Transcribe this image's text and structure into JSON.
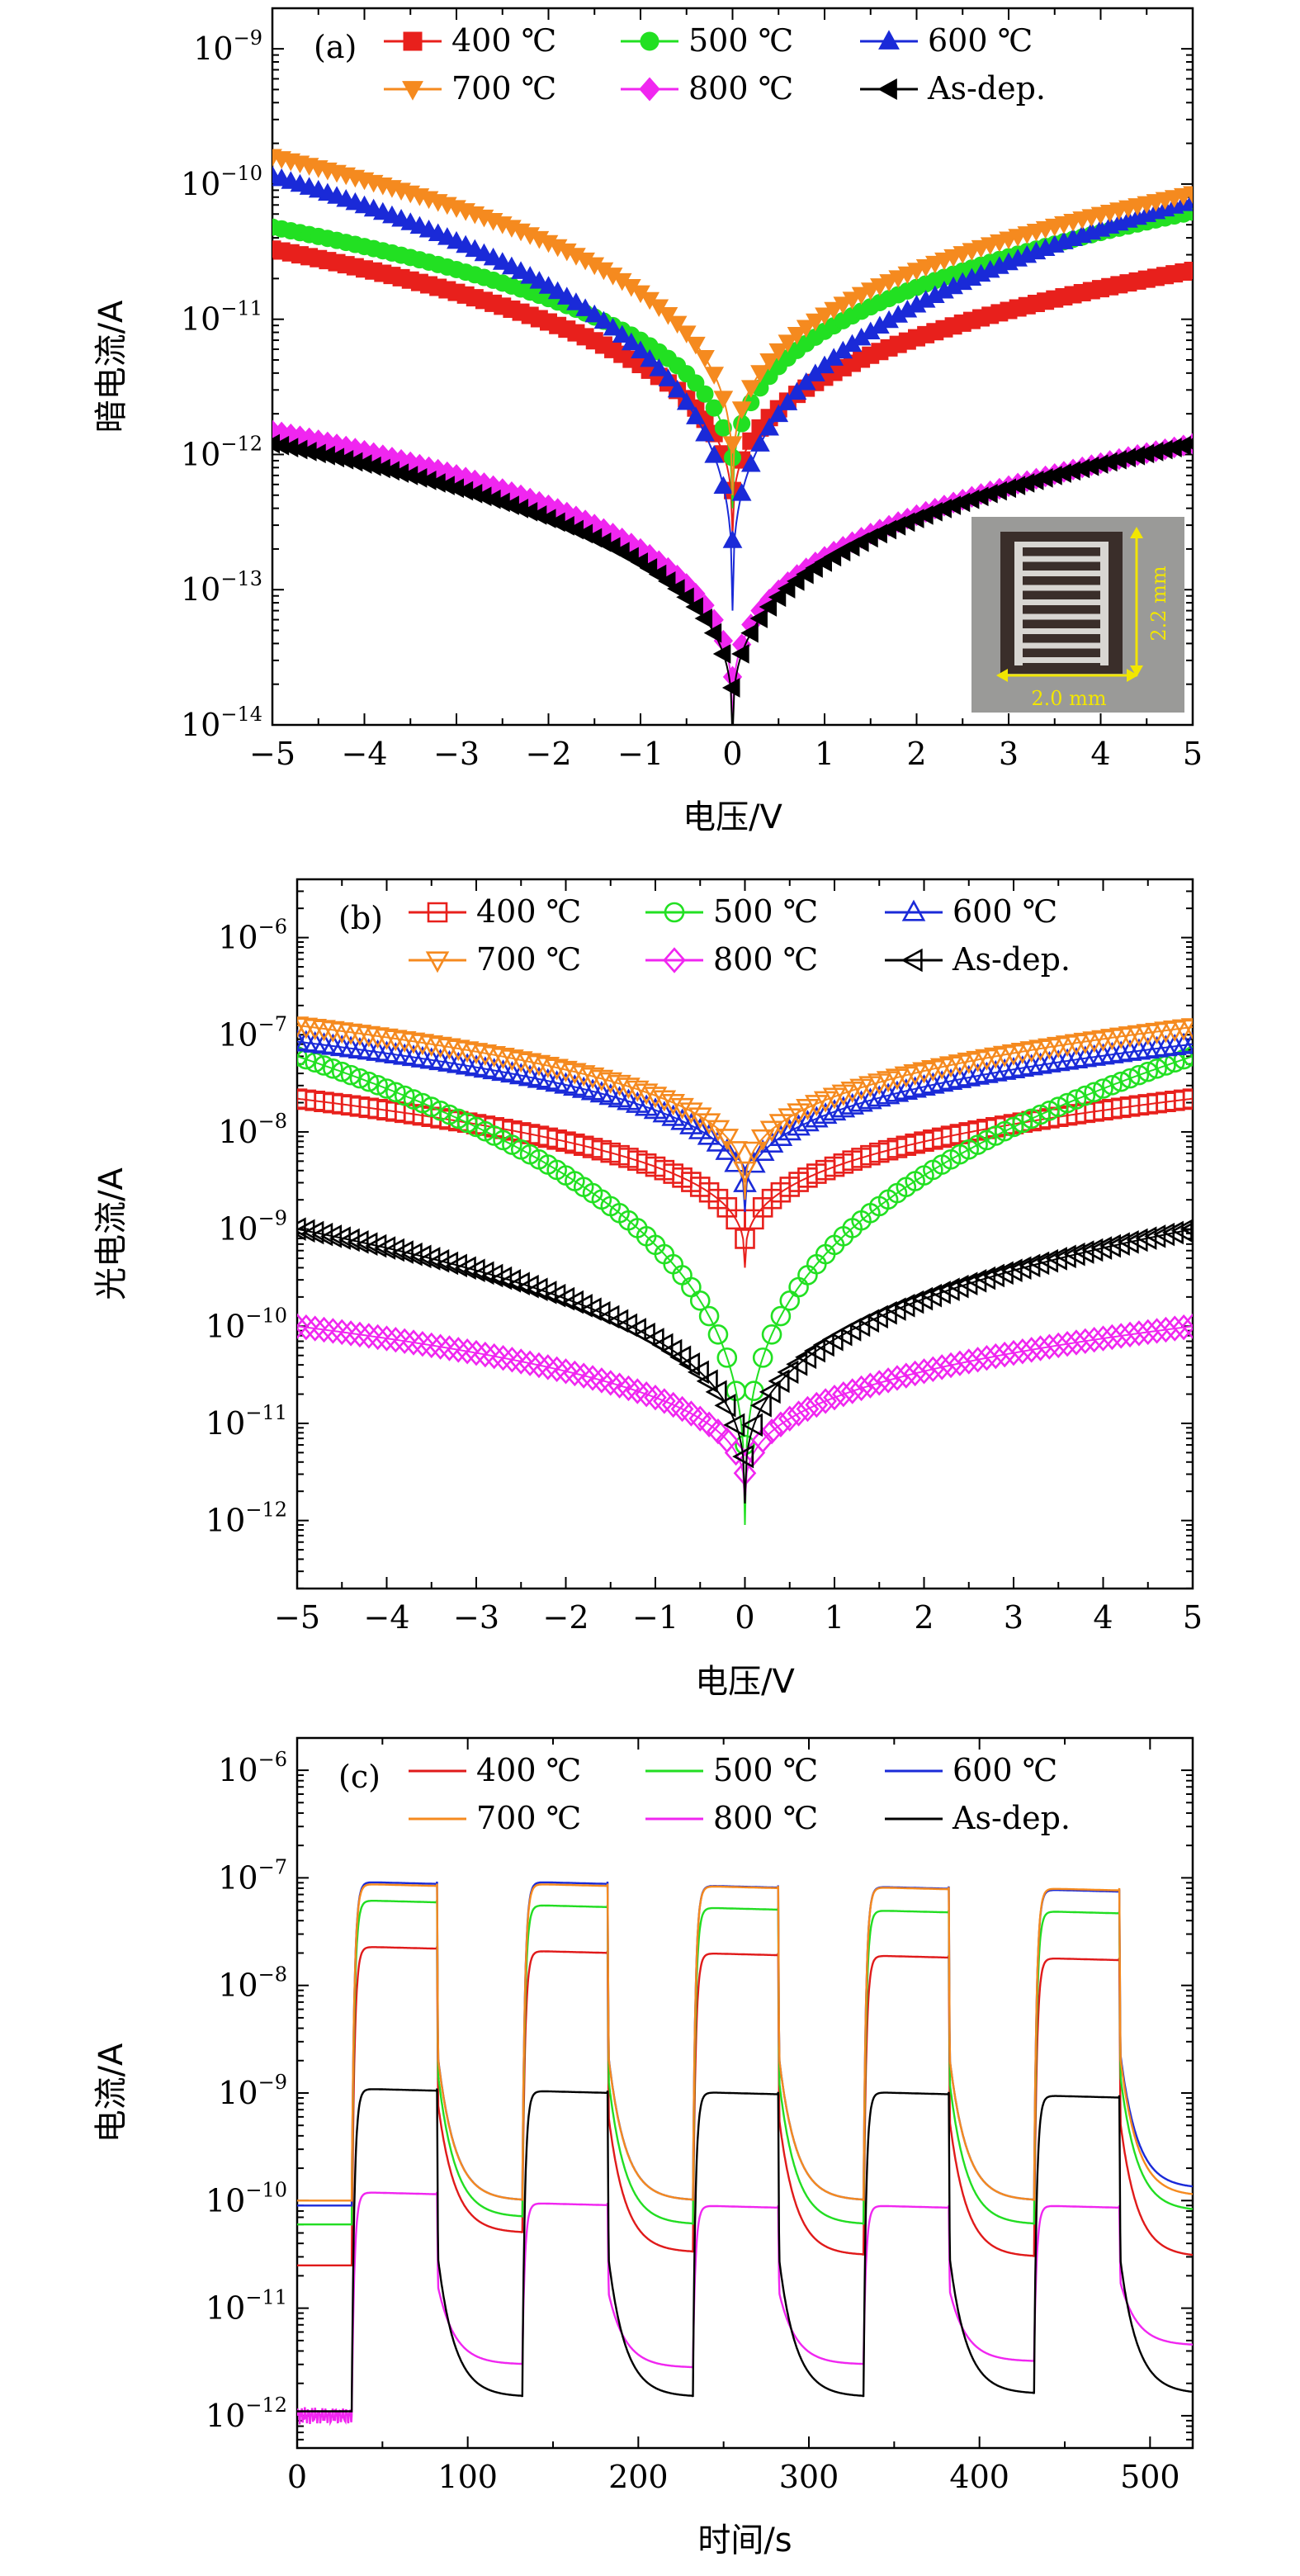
{
  "chart_data": [
    {
      "id": "a",
      "type": "line",
      "panel_label": "(a)",
      "xlabel": "电压/V",
      "ylabel": "暗电流/A",
      "xlim": [
        -5,
        5
      ],
      "ylim_log10": [
        -14,
        -8.7
      ],
      "yscale": "log",
      "x_ticks": [
        -5,
        -4,
        -3,
        -2,
        -1,
        0,
        1,
        2,
        3,
        4,
        5
      ],
      "y_tick_exponents": [
        -14,
        -13,
        -12,
        -11,
        -10,
        -9
      ],
      "marker_style": "filled",
      "legend_placement": "top",
      "inset": {
        "labels": [
          "2.0 mm",
          "2.2 mm"
        ]
      },
      "series": [
        {
          "name": "400 ℃",
          "color": "#e8201c",
          "marker": "square",
          "left": 3.3e-11,
          "right": 2.3e-11,
          "min": 2.5e-13
        },
        {
          "name": "500 ℃",
          "color": "#22e022",
          "marker": "circle",
          "left": 4.8e-11,
          "right": 6.2e-11,
          "min": 4e-13
        },
        {
          "name": "600 ℃",
          "color": "#1a2ad8",
          "marker": "triangle-up",
          "left": 1.15e-10,
          "right": 7.5e-11,
          "min": 7e-14
        },
        {
          "name": "700 ℃",
          "color": "#f58a1f",
          "marker": "triangle-down",
          "left": 1.6e-10,
          "right": 8.5e-11,
          "min": 5e-13
        },
        {
          "name": "800 ℃",
          "color": "#f026f0",
          "marker": "diamond",
          "left": 1.5e-12,
          "right": 1.2e-12,
          "min": 1e-14
        },
        {
          "name": "As-dep.",
          "color": "#000000",
          "marker": "triangle-left",
          "left": 1.2e-12,
          "right": 1.2e-12,
          "min": 8e-15
        }
      ]
    },
    {
      "id": "b",
      "type": "line",
      "panel_label": "(b)",
      "xlabel": "电压/V",
      "ylabel": "光电流/A",
      "xlim": [
        -5,
        5
      ],
      "ylim_log10": [
        -12.7,
        -5.4
      ],
      "yscale": "log",
      "x_ticks": [
        -5,
        -4,
        -3,
        -2,
        -1,
        0,
        1,
        2,
        3,
        4,
        5
      ],
      "y_tick_exponents": [
        -12,
        -11,
        -10,
        -9,
        -8,
        -7,
        -6
      ],
      "marker_style": "open",
      "legend_placement": "top",
      "series": [
        {
          "name": "400 ℃",
          "color": "#e8201c",
          "marker": "square",
          "left": 2.2e-08,
          "right": 2.2e-08,
          "min": 4e-10
        },
        {
          "name": "500 ℃",
          "color": "#22e022",
          "marker": "circle",
          "left": 6e-08,
          "right": 6e-08,
          "min": 9e-13
        },
        {
          "name": "600 ℃",
          "color": "#1a2ad8",
          "marker": "triangle-up",
          "left": 8.5e-08,
          "right": 8e-08,
          "min": 1.5e-09
        },
        {
          "name": "700 ℃",
          "color": "#f58a1f",
          "marker": "triangle-down",
          "left": 1.25e-07,
          "right": 1.2e-07,
          "min": 2e-09
        },
        {
          "name": "800 ℃",
          "color": "#f026f0",
          "marker": "diamond",
          "left": 1e-10,
          "right": 1e-10,
          "min": 1.5e-12
        },
        {
          "name": "As-dep.",
          "color": "#000000",
          "marker": "triangle-left",
          "left": 1e-09,
          "right": 1e-09,
          "min": 1.5e-12
        }
      ]
    },
    {
      "id": "c",
      "type": "line",
      "panel_label": "(c)",
      "xlabel": "时间/s",
      "ylabel": "电流/A",
      "xlim": [
        0,
        525
      ],
      "ylim_log10": [
        -12.3,
        -5.7
      ],
      "yscale": "log",
      "x_ticks": [
        0,
        100,
        200,
        300,
        400,
        500
      ],
      "y_tick_exponents": [
        -12,
        -11,
        -10,
        -9,
        -8,
        -7,
        -6
      ],
      "legend_placement": "top",
      "light_on_intervals": [
        [
          32,
          82
        ],
        [
          132,
          182
        ],
        [
          232,
          282
        ],
        [
          332,
          382
        ],
        [
          432,
          482
        ]
      ],
      "series": [
        {
          "name": "400 ℃",
          "color": "#e01a1a",
          "pre": 2.5e-11,
          "on": [
            2.3e-08,
            2.1e-08,
            2e-08,
            1.9e-08,
            1.8e-08
          ],
          "off_end": [
            5e-11,
            3.3e-11,
            3.1e-11,
            3e-11,
            3e-11
          ]
        },
        {
          "name": "500 ℃",
          "color": "#22dd22",
          "pre": 6e-11,
          "on": [
            6.2e-08,
            5.6e-08,
            5.3e-08,
            5e-08,
            4.9e-08
          ],
          "off_end": [
            7e-11,
            6e-11,
            6e-11,
            6e-11,
            8e-11
          ]
        },
        {
          "name": "600 ℃",
          "color": "#1a2ad8",
          "pre": 9e-11,
          "on": [
            9.2e-08,
            9.2e-08,
            8.5e-08,
            8.3e-08,
            7.8e-08
          ],
          "off_end": [
            1e-10,
            1e-10,
            1e-10,
            1e-10,
            1.3e-10
          ]
        },
        {
          "name": "700 ℃",
          "color": "#f58a1f",
          "pre": 1e-10,
          "on": [
            8.8e-08,
            8.8e-08,
            8.4e-08,
            8.2e-08,
            8e-08
          ],
          "off_end": [
            1e-10,
            1e-10,
            1e-10,
            1e-10,
            1.1e-10
          ]
        },
        {
          "name": "800 ℃",
          "color": "#f026f0",
          "pre": 1e-12,
          "on": [
            1.2e-10,
            9.5e-11,
            9e-11,
            9e-11,
            9e-11
          ],
          "off_end": [
            3e-12,
            2.8e-12,
            3e-12,
            3.2e-12,
            4.5e-12
          ]
        },
        {
          "name": "As-dep.",
          "color": "#000000",
          "pre": 1.1e-12,
          "on": [
            1.1e-09,
            1.05e-09,
            1.02e-09,
            1.02e-09,
            9.5e-10
          ],
          "off_end": [
            1.5e-12,
            1.5e-12,
            1.5e-12,
            1.6e-12,
            1.6e-12
          ]
        }
      ]
    }
  ]
}
